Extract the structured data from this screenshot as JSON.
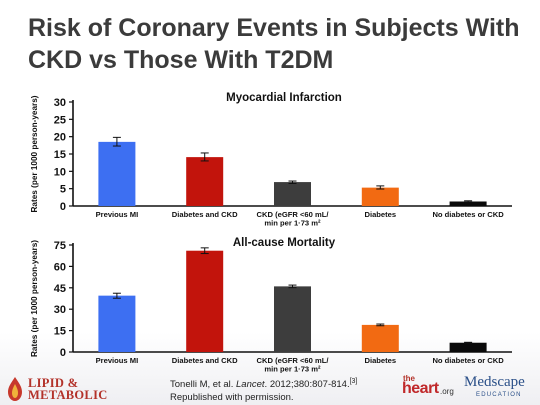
{
  "slide": {
    "title_line1": "Risk of Coronary Events in Subjects With",
    "title_line2": "CKD vs Those With T2DM"
  },
  "chart_data": [
    {
      "type": "bar",
      "title": "Myocardial Infarction",
      "ylabel": "Rates (per 1000 person-years)",
      "ylim": [
        0,
        30
      ],
      "yticks": [
        0,
        5,
        10,
        15,
        20,
        25,
        30
      ],
      "categories": [
        [
          "Previous MI"
        ],
        [
          "Diabetes and CKD"
        ],
        [
          "CKD (eGFR <60 mL/",
          "min per 1·73 m²"
        ],
        [
          "Diabetes"
        ],
        [
          "No diabetes or CKD"
        ]
      ],
      "values": [
        18.5,
        14.1,
        6.9,
        5.3,
        1.3
      ],
      "error_low": [
        17.3,
        13.0,
        6.5,
        4.9,
        1.2
      ],
      "error_high": [
        19.8,
        15.3,
        7.2,
        5.8,
        1.5
      ],
      "colors": [
        "#3d6ff2",
        "#c2140c",
        "#3d3d3d",
        "#f26a12",
        "#0a0a0a"
      ],
      "grid": false,
      "error_bars": true
    },
    {
      "type": "bar",
      "title": "All-cause Mortality",
      "ylabel": "Rates (per 1000 person-years)",
      "ylim": [
        0,
        75
      ],
      "yticks": [
        0,
        15,
        30,
        45,
        60,
        75
      ],
      "categories": [
        [
          "Previous MI"
        ],
        [
          "Diabetes and CKD"
        ],
        [
          "CKD (eGFR <60 mL/",
          "min per 1·73 m²"
        ],
        [
          "Diabetes"
        ],
        [
          "No diabetes or CKD"
        ]
      ],
      "values": [
        39.5,
        71.0,
        46.0,
        19.0,
        6.5
      ],
      "error_low": [
        37.7,
        69.0,
        45.1,
        18.4,
        6.3
      ],
      "error_high": [
        41.2,
        73.0,
        46.9,
        19.6,
        6.8
      ],
      "colors": [
        "#3d6ff2",
        "#c2140c",
        "#3d3d3d",
        "#f26a12",
        "#0a0a0a"
      ],
      "grid": false,
      "error_bars": true
    }
  ],
  "footer": {
    "logo_left_line1": "LIPID &",
    "logo_left_line2": "METABOLIC",
    "citation_authors": "Tonelli M, et al.",
    "citation_journal": "Lancet",
    "citation_rest": ". 2012;380:807-814.",
    "citation_ref": "[3]",
    "citation_line2": "Republished with permission.",
    "logo_heart_the": "the",
    "logo_heart_word": "heart",
    "logo_heart_org": ".org",
    "logo_medscape_name": "Medscape",
    "logo_medscape_sub": "EDUCATION"
  }
}
